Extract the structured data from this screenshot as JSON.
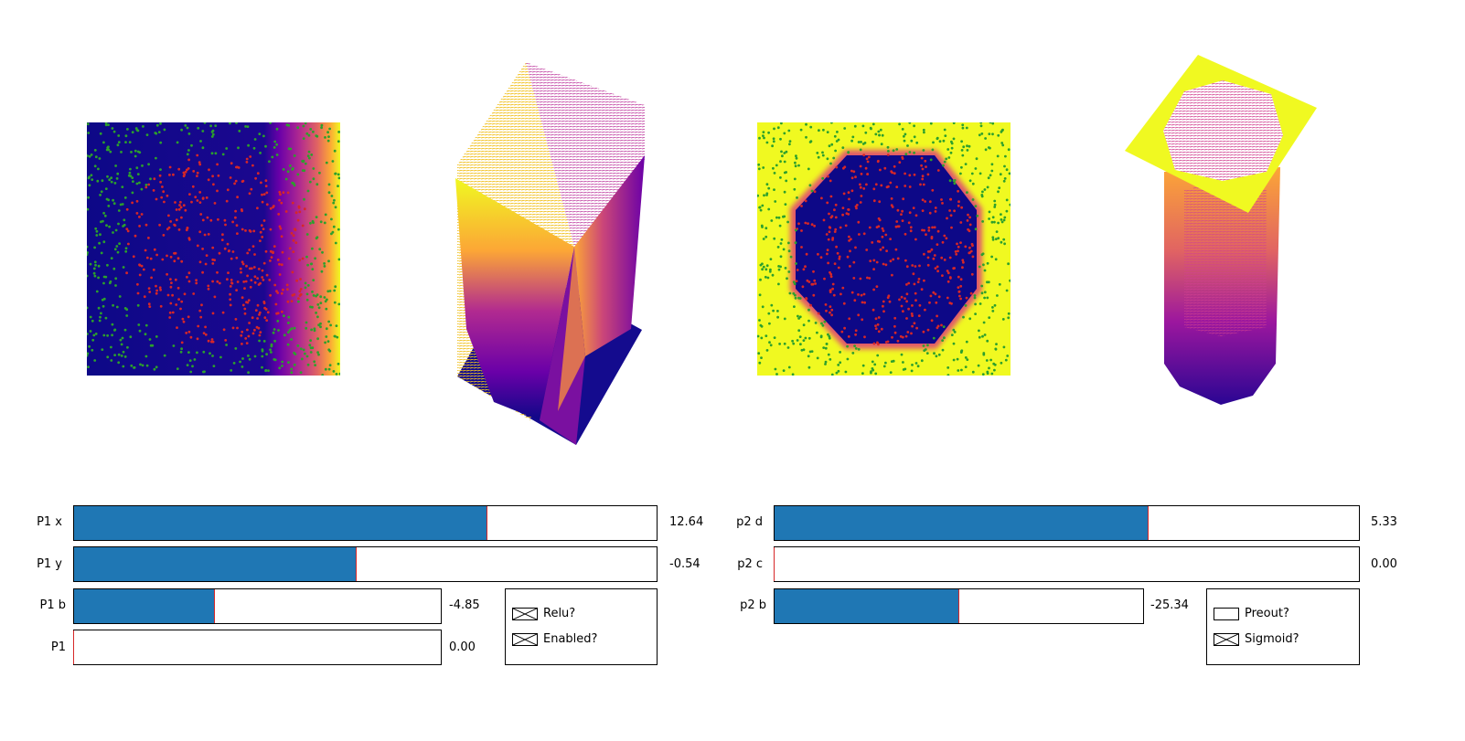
{
  "colors": {
    "slider_fill": "#1f77b4",
    "slider_marker": "#d62728",
    "point_class_a": "#d62728",
    "point_class_b": "#2ca02c",
    "colormap": "plasma"
  },
  "layer1": {
    "sliders": [
      {
        "label": "P1 x",
        "value_text": "12.64",
        "fraction": 0.71
      },
      {
        "label": "P1 y",
        "value_text": "-0.54",
        "fraction": 0.485
      },
      {
        "label": "P1 b",
        "value_text": "-4.85",
        "fraction": 0.385
      },
      {
        "label": "P1",
        "value_text": "0.00",
        "fraction": 0.0
      }
    ],
    "checkboxes": [
      {
        "label": "Relu?",
        "checked": true
      },
      {
        "label": "Enabled?",
        "checked": true
      }
    ]
  },
  "layer2": {
    "sliders": [
      {
        "label": "p2 d",
        "value_text": "5.33",
        "fraction": 0.64
      },
      {
        "label": "p2 c",
        "value_text": "0.00",
        "fraction": 0.0
      },
      {
        "label": "p2 b",
        "value_text": "-25.34",
        "fraction": 0.5
      }
    ],
    "checkboxes": [
      {
        "label": "Preout?",
        "checked": false
      },
      {
        "label": "Sigmoid?",
        "checked": true
      }
    ]
  }
}
